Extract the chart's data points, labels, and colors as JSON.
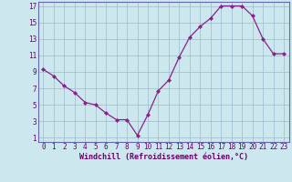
{
  "x": [
    0,
    1,
    2,
    3,
    4,
    5,
    6,
    7,
    8,
    9,
    10,
    11,
    12,
    13,
    14,
    15,
    16,
    17,
    18,
    19,
    20,
    21,
    22,
    23
  ],
  "y": [
    9.3,
    8.5,
    7.3,
    6.5,
    5.3,
    5.0,
    4.0,
    3.2,
    3.2,
    1.3,
    3.8,
    6.7,
    8.0,
    10.8,
    13.2,
    14.5,
    15.5,
    17.0,
    17.0,
    17.0,
    15.8,
    13.0,
    11.2,
    11.2
  ],
  "xlabel": "Windchill (Refroidissement éolien,°C)",
  "xlim": [
    -0.5,
    23.5
  ],
  "ylim": [
    0.5,
    17.5
  ],
  "yticks": [
    1,
    3,
    5,
    7,
    9,
    11,
    13,
    15,
    17
  ],
  "xticks": [
    0,
    1,
    2,
    3,
    4,
    5,
    6,
    7,
    8,
    9,
    10,
    11,
    12,
    13,
    14,
    15,
    16,
    17,
    18,
    19,
    20,
    21,
    22,
    23
  ],
  "line_color": "#882288",
  "marker_color": "#882288",
  "bg_color": "#cce8ee",
  "grid_color": "#99bbcc",
  "font_color": "#660066",
  "spine_color": "#6666aa"
}
